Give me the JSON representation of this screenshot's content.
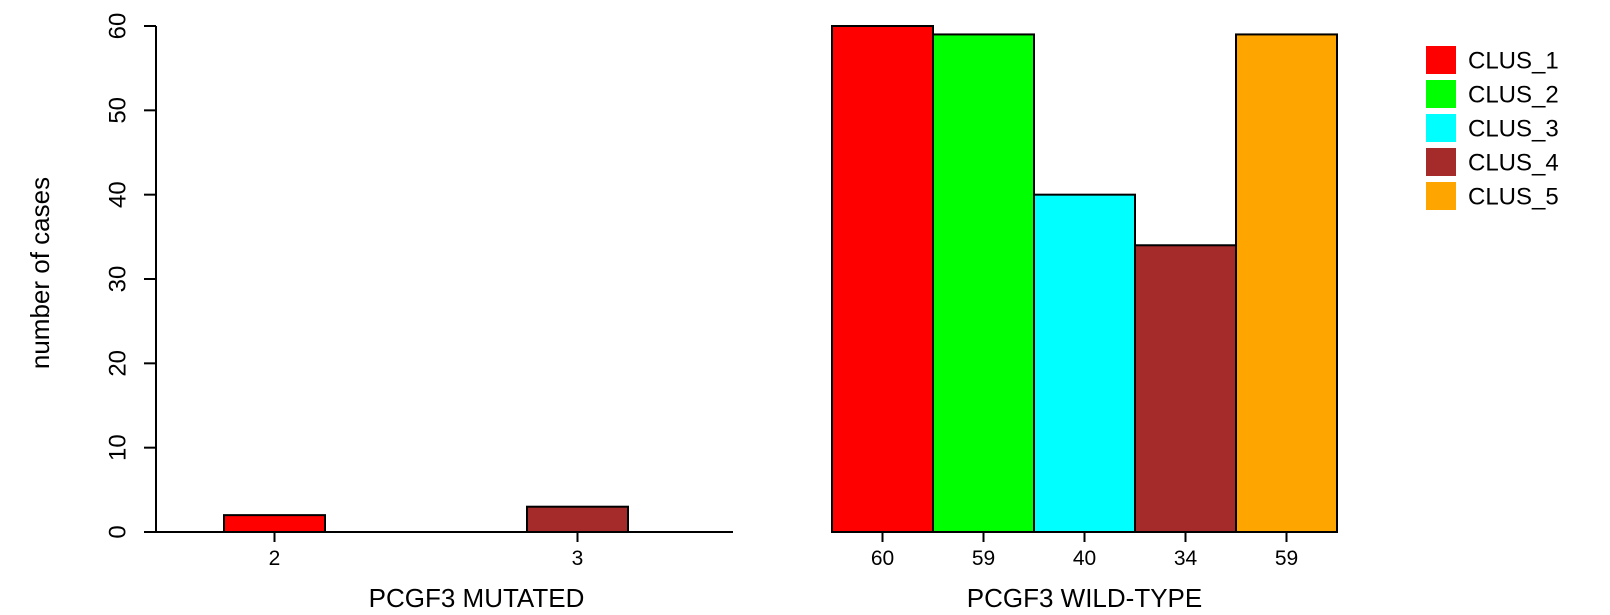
{
  "chart_data": {
    "type": "bar",
    "ylabel": "number of cases",
    "ylim": [
      0,
      60
    ],
    "yticks": [
      0,
      10,
      20,
      30,
      40,
      50,
      60
    ],
    "clusters": [
      "CLUS_1",
      "CLUS_2",
      "CLUS_3",
      "CLUS_4",
      "CLUS_5"
    ],
    "colors": [
      "#ff0000",
      "#00ff00",
      "#00ffff",
      "#a52a2a",
      "#ffa500"
    ],
    "groups": [
      {
        "label": "PCGF3 MUTATED",
        "values": [
          2,
          0,
          0,
          3,
          0
        ],
        "value_labels": [
          "2",
          "",
          "",
          "3",
          ""
        ]
      },
      {
        "label": "PCGF3 WILD-TYPE",
        "values": [
          60,
          59,
          40,
          34,
          59
        ],
        "value_labels": [
          "60",
          "59",
          "40",
          "34",
          "59"
        ]
      }
    ],
    "legend": {
      "position": "top-right",
      "entries": [
        "CLUS_1",
        "CLUS_2",
        "CLUS_3",
        "CLUS_4",
        "CLUS_5"
      ]
    },
    "grid": false
  }
}
